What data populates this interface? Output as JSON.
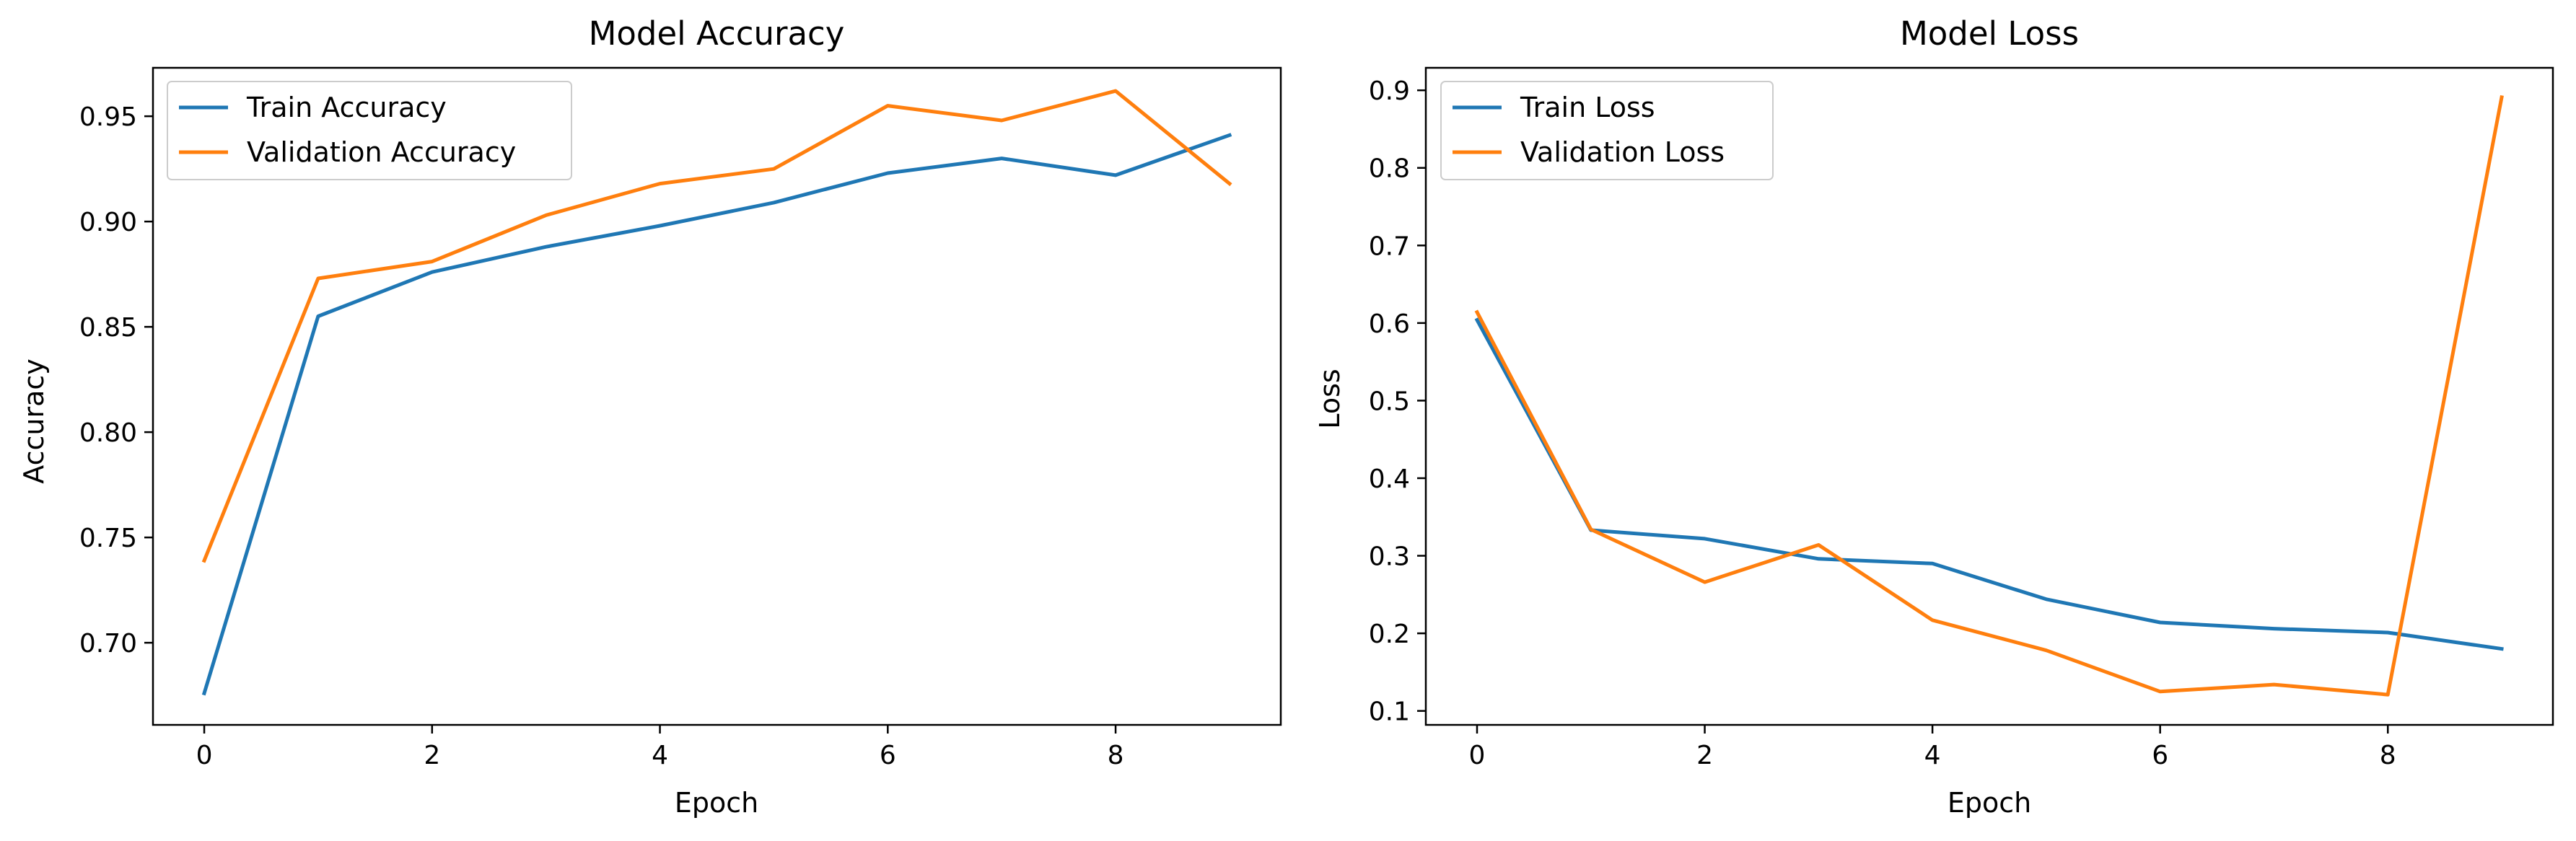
{
  "colors": {
    "train": "#1f77b4",
    "validation": "#ff7f0e",
    "axes": "#000000",
    "legend_border": "#cccccc",
    "background": "#ffffff"
  },
  "chart_data": [
    {
      "type": "line",
      "title": "Model Accuracy",
      "xlabel": "Epoch",
      "ylabel": "Accuracy",
      "grid": false,
      "legend_placement": "upper-left",
      "x": [
        0,
        1,
        2,
        3,
        4,
        5,
        6,
        7,
        8,
        9
      ],
      "xlim": [
        -0.45,
        9.45
      ],
      "ylim": [
        0.661,
        0.973
      ],
      "xticks": [
        0,
        2,
        4,
        6,
        8
      ],
      "yticks": [
        0.7,
        0.75,
        0.8,
        0.85,
        0.9,
        0.95
      ],
      "ytick_labels": [
        "0.70",
        "0.75",
        "0.80",
        "0.85",
        "0.90",
        "0.95"
      ],
      "series": [
        {
          "name": "Train Accuracy",
          "color": "#1f77b4",
          "values": [
            0.676,
            0.855,
            0.876,
            0.888,
            0.898,
            0.909,
            0.923,
            0.93,
            0.922,
            0.941
          ]
        },
        {
          "name": "Validation Accuracy",
          "color": "#ff7f0e",
          "values": [
            0.739,
            0.873,
            0.881,
            0.903,
            0.918,
            0.925,
            0.955,
            0.948,
            0.962,
            0.918
          ]
        }
      ]
    },
    {
      "type": "line",
      "title": "Model Loss",
      "xlabel": "Epoch",
      "ylabel": "Loss",
      "grid": false,
      "legend_placement": "upper-left",
      "x": [
        0,
        1,
        2,
        3,
        4,
        5,
        6,
        7,
        8,
        9
      ],
      "xlim": [
        -0.45,
        9.45
      ],
      "ylim": [
        0.082,
        0.929
      ],
      "xticks": [
        0,
        2,
        4,
        6,
        8
      ],
      "yticks": [
        0.1,
        0.2,
        0.3,
        0.4,
        0.5,
        0.6,
        0.7,
        0.8,
        0.9
      ],
      "ytick_labels": [
        "0.1",
        "0.2",
        "0.3",
        "0.4",
        "0.5",
        "0.6",
        "0.7",
        "0.8",
        "0.9"
      ],
      "series": [
        {
          "name": "Train Loss",
          "color": "#1f77b4",
          "values": [
            0.604,
            0.333,
            0.322,
            0.296,
            0.29,
            0.244,
            0.214,
            0.206,
            0.201,
            0.18
          ]
        },
        {
          "name": "Validation Loss",
          "color": "#ff7f0e",
          "values": [
            0.614,
            0.334,
            0.266,
            0.314,
            0.217,
            0.178,
            0.125,
            0.134,
            0.121,
            0.891
          ]
        }
      ]
    }
  ]
}
